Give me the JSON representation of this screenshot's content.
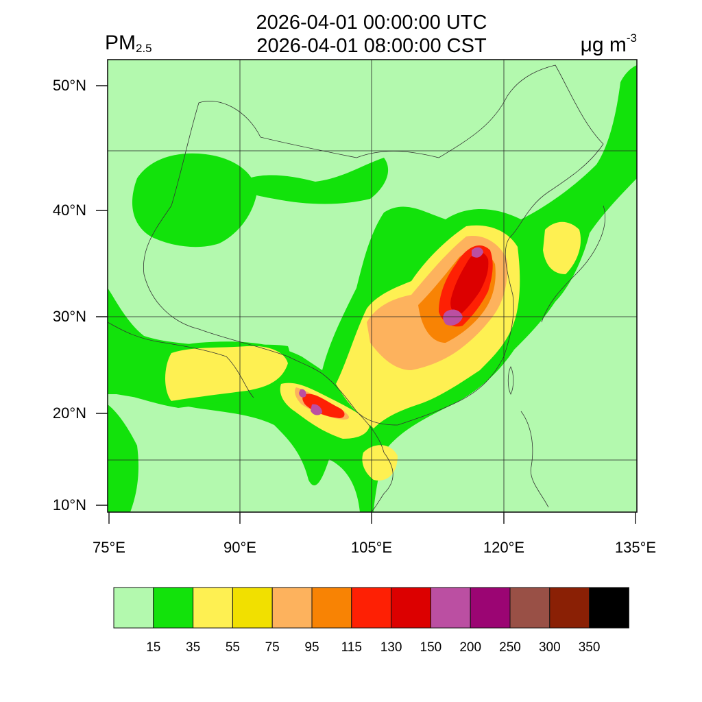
{
  "header": {
    "variable_main": "PM",
    "variable_sub": "2.5",
    "time_utc": "2026-04-01 00:00:00 UTC",
    "time_cst": "2026-04-01 08:00:00 CST",
    "unit_main": "μg m",
    "unit_sup": "-3"
  },
  "map": {
    "lat_labels": [
      "50°N",
      "40°N",
      "30°N",
      "20°N",
      "10°N"
    ],
    "lon_labels": [
      "75°E",
      "90°E",
      "105°E",
      "120°E",
      "135°E"
    ],
    "colors": {
      "background": "#b3f9ae",
      "border": "#222222"
    }
  },
  "colorbar": {
    "colors": [
      "#b3f9ae",
      "#12e20b",
      "#fef052",
      "#f1e000",
      "#fdb25d",
      "#f88304",
      "#fe2004",
      "#dc0000",
      "#bb4fa2",
      "#9b0573",
      "#995046",
      "#8a2005",
      "#000000"
    ],
    "labels": [
      "15",
      "35",
      "55",
      "75",
      "95",
      "115",
      "130",
      "150",
      "200",
      "250",
      "300",
      "350"
    ]
  }
}
